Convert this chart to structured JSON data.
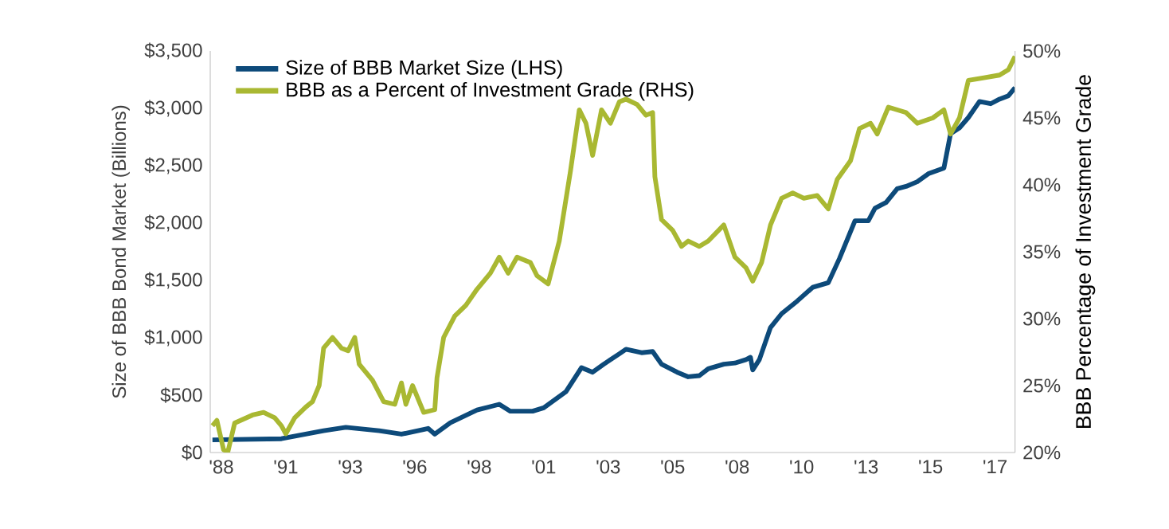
{
  "chart_data": {
    "type": "line",
    "ylabel": "Size of BBB Bond Market (Billions)",
    "y2label": "BBB Percentage of Investment Grade",
    "xlim": [
      "1988-07",
      "2018-09"
    ],
    "xticks": [
      {
        "value": "1988-12",
        "label": "'88"
      },
      {
        "value": "1991-05",
        "label": "'91"
      },
      {
        "value": "1993-10",
        "label": "'93"
      },
      {
        "value": "1996-03",
        "label": "'96"
      },
      {
        "value": "1998-08",
        "label": "'98"
      },
      {
        "value": "2001-01",
        "label": "'01"
      },
      {
        "value": "2003-06",
        "label": "'03"
      },
      {
        "value": "2005-11",
        "label": "'05"
      },
      {
        "value": "2008-04",
        "label": "'08"
      },
      {
        "value": "2010-09",
        "label": "'10"
      },
      {
        "value": "2013-02",
        "label": "'13"
      },
      {
        "value": "2015-07",
        "label": "'15"
      },
      {
        "value": "2017-12",
        "label": "'17"
      }
    ],
    "ylim": [
      0,
      3500
    ],
    "yticks": [
      {
        "value": 0,
        "label": "$0"
      },
      {
        "value": 500,
        "label": "$500"
      },
      {
        "value": 1000,
        "label": "$1,000"
      },
      {
        "value": 1500,
        "label": "$1,500"
      },
      {
        "value": 2000,
        "label": "$2,000"
      },
      {
        "value": 2500,
        "label": "$2,500"
      },
      {
        "value": 3000,
        "label": "$3,000"
      },
      {
        "value": 3500,
        "label": "$3,500"
      }
    ],
    "y2lim": [
      20,
      50
    ],
    "y2ticks": [
      {
        "value": 20,
        "label": "20%"
      },
      {
        "value": 25,
        "label": "25%"
      },
      {
        "value": 30,
        "label": "30%"
      },
      {
        "value": 35,
        "label": "35%"
      },
      {
        "value": 40,
        "label": "40%"
      },
      {
        "value": 45,
        "label": "45%"
      },
      {
        "value": 50,
        "label": "50%"
      }
    ],
    "legend": "top left",
    "series": [
      {
        "name": "Size of BBB Market Size (LHS)",
        "color": "#0d4a7a",
        "x": [
          "1988-08",
          "1991-03",
          "1992-10",
          "1993-08",
          "1994-11",
          "1995-09",
          "1996-09",
          "1996-12",
          "1997-07",
          "1998-07",
          "1999-05",
          "1999-10",
          "2000-08",
          "2001-01",
          "2001-11",
          "2002-06",
          "2002-11",
          "2003-04",
          "2003-11",
          "2004-02",
          "2004-09",
          "2005-02",
          "2005-06",
          "2006-01",
          "2006-06",
          "2006-11",
          "2007-03",
          "2007-10",
          "2008-03",
          "2008-08",
          "2008-10",
          "2008-11",
          "2009-02",
          "2009-07",
          "2009-12",
          "2010-07",
          "2011-02",
          "2011-09",
          "2012-02",
          "2012-09",
          "2013-03",
          "2013-06",
          "2013-11",
          "2014-04",
          "2014-08",
          "2015-01",
          "2015-06",
          "2016-01",
          "2016-04",
          "2016-08",
          "2016-12",
          "2017-05",
          "2017-10",
          "2018-02",
          "2018-06",
          "2018-09"
        ],
        "values": [
          110,
          120,
          190,
          220,
          190,
          160,
          210,
          160,
          260,
          370,
          420,
          360,
          360,
          390,
          530,
          740,
          700,
          770,
          860,
          900,
          870,
          880,
          770,
          700,
          660,
          670,
          730,
          770,
          780,
          810,
          830,
          720,
          810,
          1090,
          1210,
          1320,
          1440,
          1480,
          1690,
          2020,
          2020,
          2130,
          2180,
          2300,
          2320,
          2360,
          2430,
          2480,
          2780,
          2830,
          2920,
          3060,
          3040,
          3080,
          3110,
          3180
        ]
      },
      {
        "name": "BBB as a Percent of Investment Grade (RHS)",
        "color": "#a9b832",
        "axis": "y2",
        "x": [
          "1988-08",
          "1988-10",
          "1989-01",
          "1989-03",
          "1989-06",
          "1990-02",
          "1990-07",
          "1990-12",
          "1991-03",
          "1991-05",
          "1991-09",
          "1992-02",
          "1992-05",
          "1992-08",
          "1992-10",
          "1993-02",
          "1993-06",
          "1993-09",
          "1993-12",
          "1994-02",
          "1994-08",
          "1995-01",
          "1995-06",
          "1995-09",
          "1995-11",
          "1996-02",
          "1996-07",
          "1996-12",
          "1997-01",
          "1997-04",
          "1997-09",
          "1998-02",
          "1998-07",
          "1999-01",
          "1999-05",
          "1999-09",
          "2000-01",
          "2000-07",
          "2000-10",
          "2001-03",
          "2001-08",
          "2002-01",
          "2002-05",
          "2002-08",
          "2002-11",
          "2003-03",
          "2003-07",
          "2003-11",
          "2004-02",
          "2004-07",
          "2004-11",
          "2005-02",
          "2005-03",
          "2005-06",
          "2005-11",
          "2006-03",
          "2006-06",
          "2006-11",
          "2007-03",
          "2007-10",
          "2008-03",
          "2008-08",
          "2008-11",
          "2009-03",
          "2009-07",
          "2009-12",
          "2010-05",
          "2010-10",
          "2011-04",
          "2011-09",
          "2012-01",
          "2012-07",
          "2012-11",
          "2013-04",
          "2013-07",
          "2013-12",
          "2014-08",
          "2015-01",
          "2015-08",
          "2016-01",
          "2016-04",
          "2016-08",
          "2016-12",
          "2017-07",
          "2018-02",
          "2018-06",
          "2018-09"
        ],
        "values": [
          22.0,
          22.4,
          20.2,
          20.1,
          22.2,
          22.8,
          23.0,
          22.6,
          22.0,
          21.4,
          22.6,
          23.4,
          23.8,
          25.0,
          27.8,
          28.6,
          27.8,
          27.6,
          28.6,
          26.6,
          25.4,
          23.8,
          23.6,
          25.2,
          23.6,
          25.0,
          23.0,
          23.2,
          25.6,
          28.6,
          30.2,
          31.0,
          32.2,
          33.4,
          34.6,
          33.4,
          34.6,
          34.2,
          33.2,
          32.6,
          35.8,
          41.0,
          45.6,
          44.6,
          42.2,
          45.6,
          44.6,
          46.2,
          46.4,
          46.0,
          45.2,
          45.4,
          40.6,
          37.4,
          36.6,
          35.4,
          35.8,
          35.4,
          35.8,
          37.0,
          34.6,
          33.8,
          32.8,
          34.2,
          37.0,
          39.0,
          39.4,
          39.0,
          39.2,
          38.2,
          40.4,
          41.8,
          44.2,
          44.6,
          43.8,
          45.8,
          45.4,
          44.6,
          45.0,
          45.6,
          43.8,
          45.0,
          47.8,
          48.0,
          48.2,
          48.6,
          49.6
        ]
      }
    ]
  }
}
